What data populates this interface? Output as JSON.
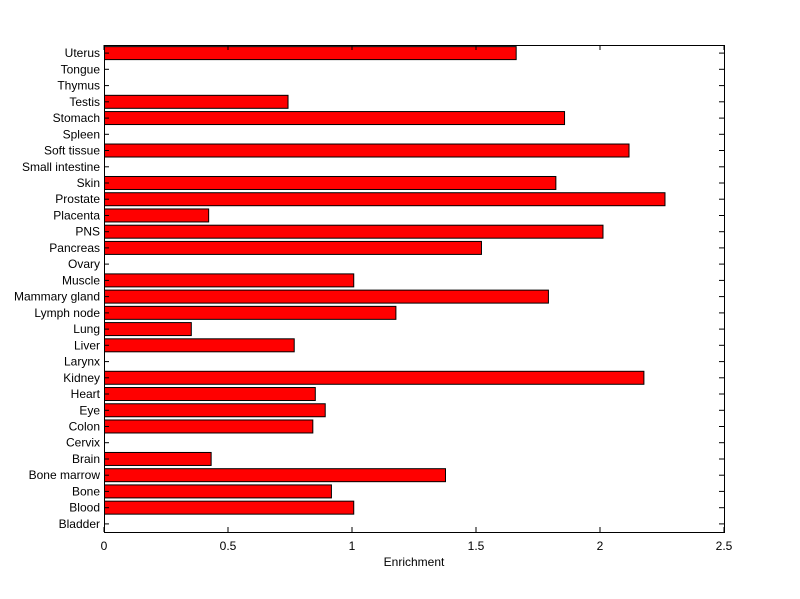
{
  "chart_data": {
    "type": "bar",
    "orientation": "horizontal",
    "title": "",
    "xlabel": "Enrichment",
    "ylabel": "",
    "xlim": [
      0,
      2.5
    ],
    "xticks": [
      0,
      0.5,
      1,
      1.5,
      2,
      2.5
    ],
    "xtick_labels": [
      "0",
      "0.5",
      "1",
      "1.5",
      "2",
      "2.5"
    ],
    "grid": false,
    "legend": "none",
    "bar_color": "#ff0000",
    "bar_edge_color": "#000000",
    "categories": [
      "Uterus",
      "Tongue",
      "Thymus",
      "Testis",
      "Stomach",
      "Spleen",
      "Soft tissue",
      "Small intestine",
      "Skin",
      "Prostate",
      "Placenta",
      "PNS",
      "Pancreas",
      "Ovary",
      "Muscle",
      "Mammary gland",
      "Lymph node",
      "Lung",
      "Liver",
      "Larynx",
      "Kidney",
      "Heart",
      "Eye",
      "Colon",
      "Cervix",
      "Brain",
      "Bone marrow",
      "Bone",
      "Blood",
      "Bladder"
    ],
    "values": [
      1.66,
      0,
      0,
      0.74,
      1.855,
      0,
      2.115,
      0,
      1.82,
      2.26,
      0.42,
      2.01,
      1.52,
      0,
      1.005,
      1.79,
      1.175,
      0.35,
      0.765,
      0,
      2.175,
      0.85,
      0.89,
      0.84,
      0,
      0.43,
      1.375,
      0.915,
      1.005,
      0
    ]
  }
}
